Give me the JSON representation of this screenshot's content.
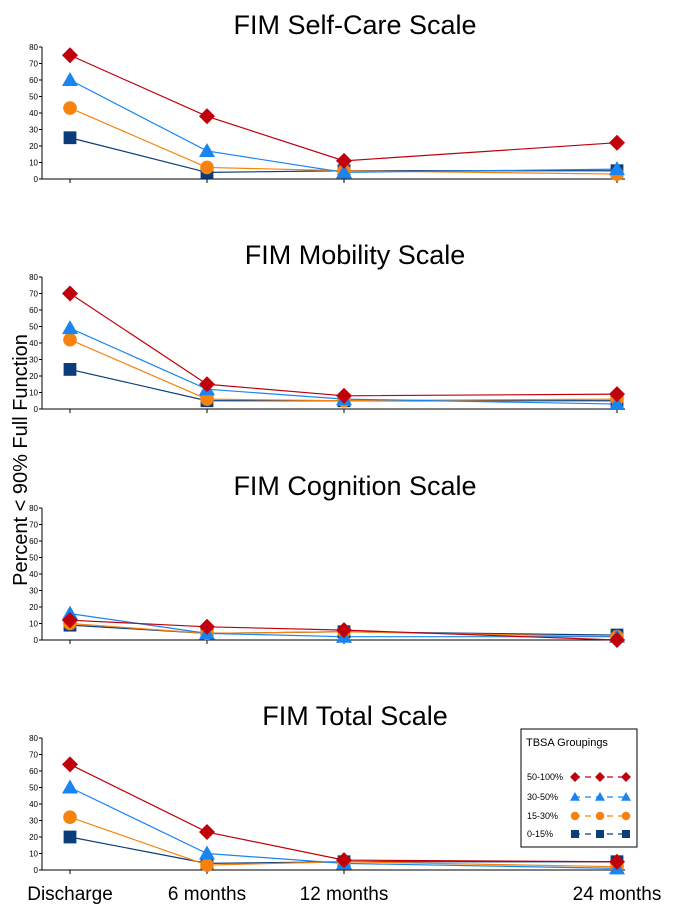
{
  "chart_data": {
    "type": "line",
    "ylabel": "Percent < 90% Full Function",
    "categories": [
      "Discharge",
      "6 months",
      "12 months",
      "24 months"
    ],
    "yticks": [
      0,
      10,
      20,
      30,
      40,
      50,
      60,
      70,
      80
    ],
    "ylim": [
      0,
      80
    ],
    "legend": {
      "title": "TBSA Groupings",
      "placement": "inside-bottom-right-of-last-panel",
      "entries": [
        "50-100%",
        "30-50%",
        "15-30%",
        "0-15%"
      ]
    },
    "series_styles": [
      {
        "name": "50-100%",
        "color": "#c0000b",
        "marker": "diamond"
      },
      {
        "name": "30-50%",
        "color": "#1a85f0",
        "marker": "triangle"
      },
      {
        "name": "15-30%",
        "color": "#f7820f",
        "marker": "circle"
      },
      {
        "name": "0-15%",
        "color": "#0a3d7a",
        "marker": "square"
      }
    ],
    "panels": [
      {
        "title": "FIM Self-Care Scale",
        "series": [
          {
            "name": "50-100%",
            "values": [
              75,
              38,
              11,
              22
            ]
          },
          {
            "name": "30-50%",
            "values": [
              60,
              17,
              4,
              6
            ]
          },
          {
            "name": "15-30%",
            "values": [
              43,
              7,
              5,
              3
            ]
          },
          {
            "name": "0-15%",
            "values": [
              25,
              4,
              5,
              5
            ]
          }
        ]
      },
      {
        "title": "FIM Mobility Scale",
        "series": [
          {
            "name": "50-100%",
            "values": [
              70,
              15,
              8,
              9
            ]
          },
          {
            "name": "30-50%",
            "values": [
              49,
              12,
              6,
              3
            ]
          },
          {
            "name": "15-30%",
            "values": [
              42,
              6,
              5,
              6
            ]
          },
          {
            "name": "0-15%",
            "values": [
              24,
              5,
              5,
              5
            ]
          }
        ]
      },
      {
        "title": "FIM Cognition Scale",
        "series": [
          {
            "name": "50-100%",
            "values": [
              12,
              8,
              6,
              0
            ]
          },
          {
            "name": "30-50%",
            "values": [
              16,
              4,
              2,
              2
            ]
          },
          {
            "name": "15-30%",
            "values": [
              10,
              4,
              5,
              2
            ]
          },
          {
            "name": "0-15%",
            "values": [
              9,
              4,
              5,
              3
            ]
          }
        ]
      },
      {
        "title": "FIM Total Scale",
        "series": [
          {
            "name": "50-100%",
            "values": [
              64,
              23,
              6,
              5
            ]
          },
          {
            "name": "30-50%",
            "values": [
              50,
              10,
              4,
              1
            ]
          },
          {
            "name": "15-30%",
            "values": [
              32,
              3,
              5,
              2
            ]
          },
          {
            "name": "0-15%",
            "values": [
              20,
              4,
              5,
              5
            ]
          }
        ]
      }
    ]
  }
}
